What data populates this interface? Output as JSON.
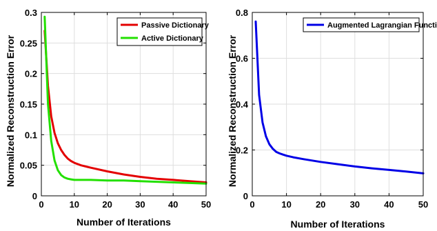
{
  "chart_data": [
    {
      "type": "line",
      "title": "",
      "xlabel": "Number of Iterations",
      "ylabel": "Normalized Reconstruction Error",
      "xlim": [
        0,
        50
      ],
      "ylim": [
        0,
        0.3
      ],
      "xticks": [
        0,
        10,
        20,
        30,
        40,
        50
      ],
      "yticks": [
        0,
        0.05,
        0.1,
        0.15,
        0.2,
        0.25,
        0.3
      ],
      "ytick_labels": [
        "0",
        "0.05",
        "0.1",
        "0.15",
        "0.2",
        "0.25",
        "0.3"
      ],
      "grid": true,
      "legend_position": "top-right",
      "series": [
        {
          "name": "Passive Dictionary",
          "color": "#e30000",
          "x": [
            1,
            2,
            3,
            4,
            5,
            6,
            7,
            8,
            9,
            10,
            12,
            15,
            20,
            25,
            30,
            35,
            40,
            45,
            50
          ],
          "y": [
            0.27,
            0.18,
            0.13,
            0.103,
            0.086,
            0.075,
            0.067,
            0.061,
            0.057,
            0.054,
            0.05,
            0.046,
            0.04,
            0.035,
            0.031,
            0.028,
            0.026,
            0.024,
            0.022
          ]
        },
        {
          "name": "Active Dictionary",
          "color": "#22e000",
          "x": [
            1,
            2,
            3,
            4,
            5,
            6,
            7,
            8,
            9,
            10,
            12,
            15,
            20,
            25,
            30,
            35,
            40,
            45,
            50
          ],
          "y": [
            0.293,
            0.15,
            0.09,
            0.058,
            0.042,
            0.034,
            0.03,
            0.028,
            0.027,
            0.026,
            0.026,
            0.026,
            0.025,
            0.025,
            0.024,
            0.023,
            0.022,
            0.021,
            0.02
          ]
        }
      ]
    },
    {
      "type": "line",
      "title": "",
      "xlabel": "Number of Iterations",
      "ylabel": "Normalized Reconstruction Error",
      "xlim": [
        0,
        50
      ],
      "ylim": [
        0,
        0.8
      ],
      "xticks": [
        0,
        10,
        20,
        30,
        40,
        50
      ],
      "yticks": [
        0,
        0.2,
        0.4,
        0.6,
        0.8
      ],
      "ytick_labels": [
        "0",
        "0.2",
        "0.4",
        "0.6",
        "0.8"
      ],
      "grid": true,
      "legend_position": "top-right",
      "series": [
        {
          "name": "Augmented Lagrangian Function",
          "color": "#0000e6",
          "x": [
            1,
            2,
            3,
            4,
            5,
            6,
            7,
            8,
            9,
            10,
            12,
            15,
            20,
            25,
            30,
            35,
            40,
            45,
            50
          ],
          "y": [
            0.76,
            0.44,
            0.32,
            0.26,
            0.225,
            0.205,
            0.192,
            0.185,
            0.18,
            0.175,
            0.168,
            0.16,
            0.148,
            0.138,
            0.128,
            0.12,
            0.113,
            0.106,
            0.098
          ]
        }
      ]
    }
  ]
}
